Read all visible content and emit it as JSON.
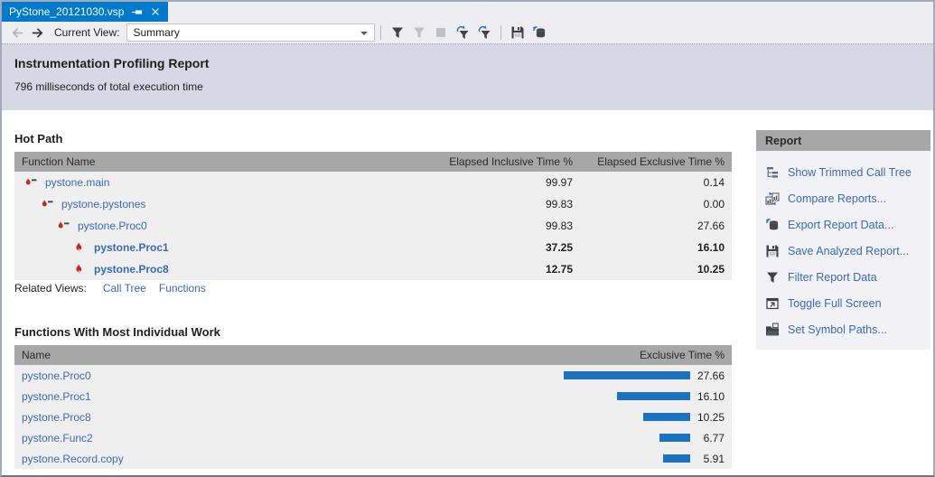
{
  "tab": {
    "title": "PyStone_20121030.vsp"
  },
  "toolbar": {
    "current_view_label": "Current View:",
    "view_value": "Summary"
  },
  "banner": {
    "title": "Instrumentation Profiling Report",
    "subtitle": "796 milliseconds of total execution time"
  },
  "hot_path": {
    "heading": "Hot Path",
    "columns": {
      "name": "Function Name",
      "inclusive": "Elapsed Inclusive Time %",
      "exclusive": "Elapsed Exclusive Time %"
    },
    "rows": [
      {
        "name": "pystone.main",
        "level": 0,
        "bold": false,
        "inclusive": "99.97",
        "exclusive": "0.14"
      },
      {
        "name": "pystone.pystones",
        "level": 1,
        "bold": false,
        "inclusive": "99.83",
        "exclusive": "0.00"
      },
      {
        "name": "pystone.Proc0",
        "level": 2,
        "bold": false,
        "inclusive": "99.83",
        "exclusive": "27.66"
      },
      {
        "name": "pystone.Proc1",
        "level": 3,
        "bold": true,
        "inclusive": "37.25",
        "exclusive": "16.10"
      },
      {
        "name": "pystone.Proc8",
        "level": 3,
        "bold": true,
        "inclusive": "12.75",
        "exclusive": "10.25"
      }
    ],
    "related_views_label": "Related Views:",
    "related_links": [
      "Call Tree",
      "Functions"
    ]
  },
  "individual_work": {
    "heading": "Functions With Most Individual Work",
    "columns": {
      "name": "Name",
      "exclusive": "Exclusive Time %"
    },
    "rows": [
      {
        "name": "pystone.Proc0",
        "value": "27.66"
      },
      {
        "name": "pystone.Proc1",
        "value": "16.10"
      },
      {
        "name": "pystone.Proc8",
        "value": "10.25"
      },
      {
        "name": "pystone.Func2",
        "value": "6.77"
      },
      {
        "name": "pystone.Record.copy",
        "value": "5.91"
      }
    ]
  },
  "chart_data": {
    "type": "bar",
    "orientation": "horizontal",
    "title": "Functions With Most Individual Work",
    "xlabel": "Exclusive Time %",
    "categories": [
      "pystone.Proc0",
      "pystone.Proc1",
      "pystone.Proc8",
      "pystone.Func2",
      "pystone.Record.copy"
    ],
    "values": [
      27.66,
      16.1,
      10.25,
      6.77,
      5.91
    ],
    "bar_color": "#1B72C0"
  },
  "report_panel": {
    "heading": "Report",
    "items": [
      {
        "label": "Show Trimmed Call Tree",
        "icon": "trimmed-call-tree"
      },
      {
        "label": "Compare Reports...",
        "icon": "compare-reports"
      },
      {
        "label": "Export Report Data...",
        "icon": "export-report-data"
      },
      {
        "label": "Save Analyzed Report...",
        "icon": "save-analyzed-report"
      },
      {
        "label": "Filter Report Data",
        "icon": "filter-report-data"
      },
      {
        "label": "Toggle Full Screen",
        "icon": "toggle-full-screen"
      },
      {
        "label": "Set Symbol Paths...",
        "icon": "set-symbol-paths"
      }
    ]
  },
  "colors": {
    "tab_accent": "#007ACC",
    "link": "#3A6BB7",
    "bar": "#1B72C0",
    "table_header_bg": "#A7A7A7",
    "banner_bg": "#D6D8E5",
    "row_bg": "#EFEFEF"
  }
}
